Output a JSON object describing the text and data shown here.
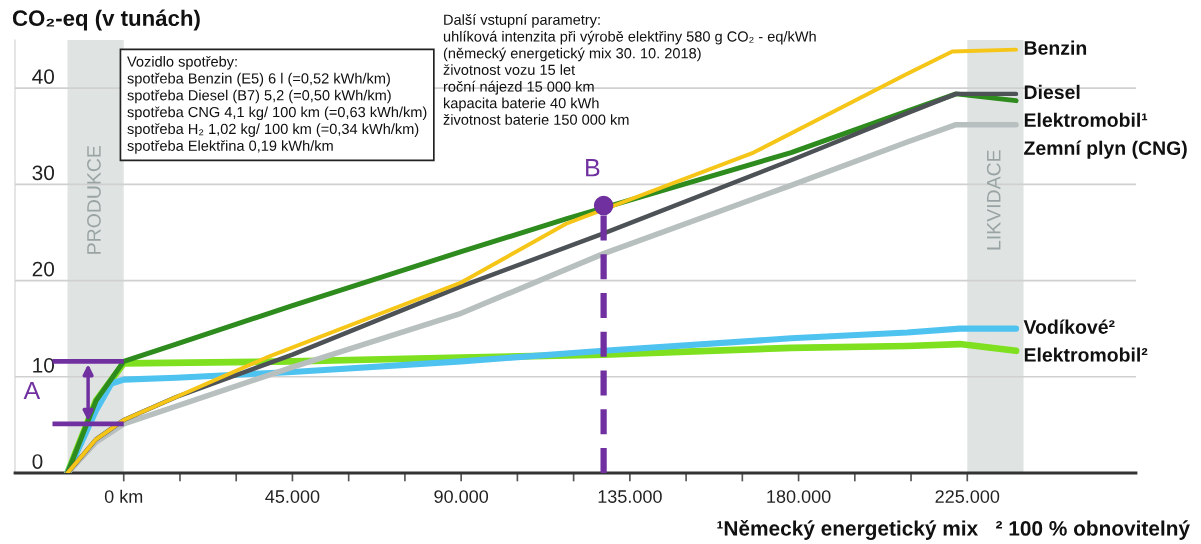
{
  "chart_data": {
    "type": "line",
    "title": "CO₂-eq (v tunách)",
    "xlim": [
      -29000,
      270000
    ],
    "ylim": [
      0,
      45
    ],
    "xticks": [
      {
        "value": 0,
        "label": "0 km"
      },
      {
        "value": 15000,
        "label": null
      },
      {
        "value": 30000,
        "label": null
      },
      {
        "value": 45000,
        "label": "45.000"
      },
      {
        "value": 60000,
        "label": null
      },
      {
        "value": 75000,
        "label": null
      },
      {
        "value": 90000,
        "label": "90.000"
      },
      {
        "value": 105000,
        "label": null
      },
      {
        "value": 120000,
        "label": null
      },
      {
        "value": 135000,
        "label": "135.000"
      },
      {
        "value": 150000,
        "label": null
      },
      {
        "value": 165000,
        "label": null
      },
      {
        "value": 180000,
        "label": "180.000"
      },
      {
        "value": 195000,
        "label": null
      },
      {
        "value": 210000,
        "label": null
      },
      {
        "value": 225000,
        "label": "225.000"
      }
    ],
    "yticks": [
      0,
      10,
      20,
      30,
      40
    ],
    "grid": "y",
    "legend": false,
    "marker": "none",
    "line_style": "solid",
    "bands": [
      {
        "axis": "x",
        "from": -15000,
        "to": 0,
        "label": "PRODUKCE",
        "color": "#dfe4e3"
      },
      {
        "axis": "x",
        "from": 225000,
        "to": 240000,
        "label": "LIKVIDACE",
        "color": "#dfe4e3"
      }
    ],
    "series": [
      {
        "name": "Benzin",
        "color": "#f5c518",
        "x": [
          -15000,
          -7400,
          0,
          14000,
          38700,
          90000,
          118000,
          168000,
          209000,
          221000,
          238000
        ],
        "values": [
          0,
          3.5,
          5.5,
          7.9,
          12.1,
          19.8,
          25.9,
          33.3,
          41.5,
          43.8,
          44.0
        ]
      },
      {
        "name": "Diesel",
        "color": "#4d5257",
        "x": [
          -15000,
          -7400,
          0,
          14000,
          45000,
          90000,
          128000,
          178000,
          209000,
          222000,
          238000
        ],
        "values": [
          0,
          3.5,
          5.5,
          7.9,
          12.3,
          19.4,
          24.9,
          32.5,
          37.4,
          39.4,
          39.4
        ]
      },
      {
        "name": "Elektromobil¹",
        "color": "#2e8b1e",
        "x": [
          -15000,
          -7400,
          0,
          14000,
          45000,
          90000,
          118000,
          178000,
          209000,
          222000,
          238000
        ],
        "values": [
          0,
          7.5,
          11.6,
          13.4,
          17.4,
          23.0,
          26.4,
          33.3,
          37.6,
          39.4,
          38.7
        ]
      },
      {
        "name": "Zemní plyn (CNG)",
        "color": "#b8bfbf",
        "x": [
          -15000,
          -7400,
          0,
          45000,
          90000,
          128000,
          178000,
          209000,
          222000,
          238000
        ],
        "values": [
          0,
          3.2,
          5.1,
          11.0,
          16.6,
          22.8,
          29.9,
          34.4,
          36.2,
          36.2
        ]
      },
      {
        "name": "Vodíkové²",
        "color": "#4fc3f0",
        "x": [
          -15000,
          -7400,
          -3300,
          0,
          14000,
          45000,
          90000,
          128000,
          178000,
          209000,
          223000,
          238000
        ],
        "values": [
          0,
          6.5,
          9.3,
          9.7,
          9.9,
          10.5,
          11.6,
          12.7,
          14.0,
          14.6,
          15.0,
          15.0
        ]
      },
      {
        "name": "Elektromobil²",
        "color": "#7ee01e",
        "x": [
          -15000,
          -7400,
          0,
          45000,
          90000,
          128000,
          178000,
          209000,
          223000,
          238000
        ],
        "values": [
          0,
          7.5,
          11.4,
          11.6,
          12.0,
          12.3,
          13.0,
          13.2,
          13.4,
          12.7
        ]
      }
    ],
    "annotations": [
      {
        "text": "A",
        "x": 0,
        "y": 11.6
      },
      {
        "text": "B",
        "x": 128000,
        "y": 27.8
      },
      "Vozidlo spotřeby:\nspotřeba Benzin (E5) 6 l (=0,52 kWh/km)\nspotřeba Diesel (B7) 5,2 (=0,50 kWh/km)\nspotřeba CNG 4,1 kg/ 100 km (=0,63 kWh/km)\nspotřeba H₂ 1,02 kg/ 100 km (=0,34 kWh/km)\nspotřeba Elektřina 0,19 kWh/km",
      "Další vstupní parametry:\nuhlíková intenzita při výrobě elektřiny 580 g CO₂ - eq/kWh\n(německý energetický mix 30. 10. 2018)\nživotnost vozu 15 let\nroční nájezd 15 000 km\nkapacita baterie 40 kWh\nživotnost baterie 150 000 km",
      "¹Německý energetický mix   ² 100 % obnovitelný"
    ]
  }
}
